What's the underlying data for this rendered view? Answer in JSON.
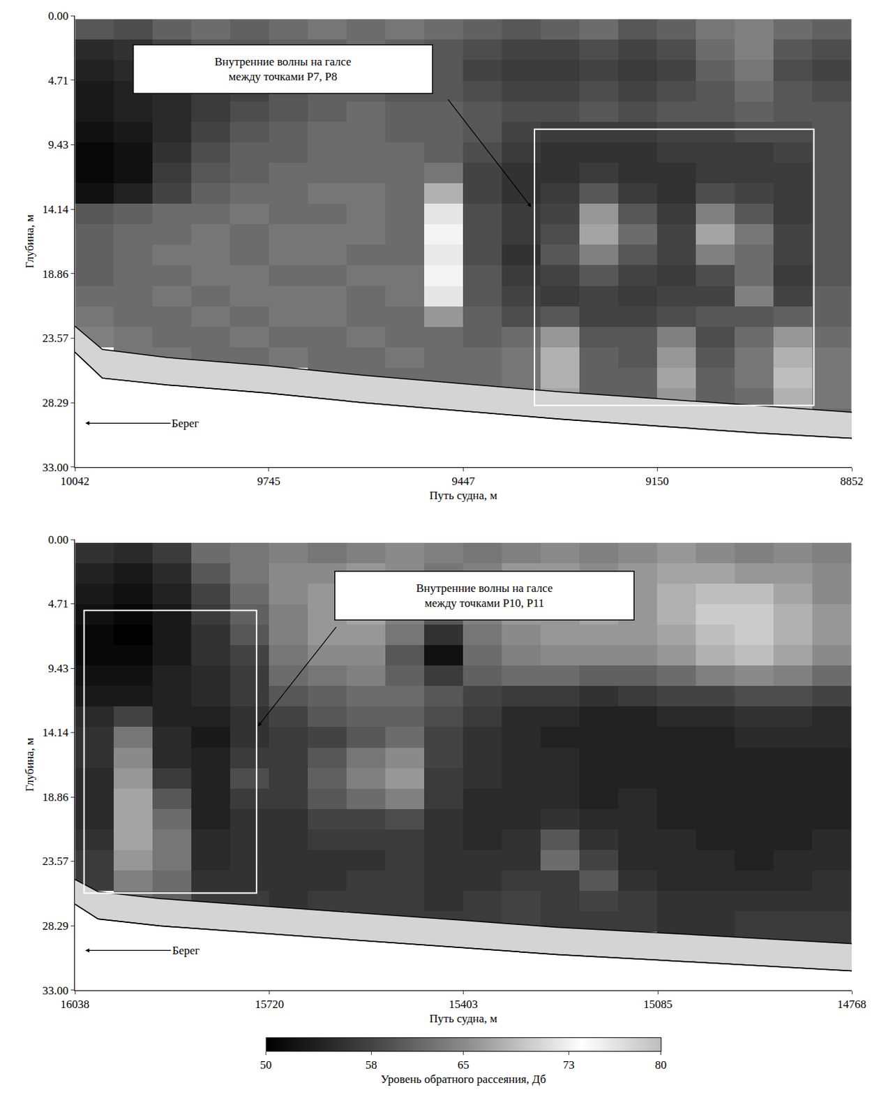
{
  "chart_data": {
    "type": "heatmap",
    "colorbar": {
      "title": "Уровень обратного рассеяния, Дб",
      "range": [
        50,
        80
      ],
      "ticks": [
        50,
        58,
        65,
        73,
        80
      ]
    },
    "panels": [
      {
        "x_label": "Путь судна, м",
        "y_label": "Глубина, м",
        "xlim": [
          10042,
          8852
        ],
        "xticks": [
          10042,
          9745,
          9447,
          9150,
          8852
        ],
        "ylim": [
          33,
          0
        ],
        "yticks": [
          {
            "value": 0,
            "label": "0.00"
          },
          4.71,
          9.43,
          14.14,
          18.86,
          23.57,
          28.29,
          {
            "value": 33,
            "label": "33.00"
          }
        ],
        "x": [
          10012,
          9953,
          9893,
          9834,
          9774,
          9715,
          9655,
          9596,
          9536,
          9477,
          9417,
          9358,
          9298,
          9239,
          9179,
          9120,
          9060,
          9001,
          8941,
          8882
        ],
        "depth": [
          1,
          2.5,
          4,
          5.5,
          7,
          8.5,
          10,
          11.5,
          13,
          14.5,
          16,
          17.5,
          19,
          20.5,
          22,
          23.5,
          25,
          26.5,
          28,
          29.5
        ],
        "z": [
          [
            60,
            59,
            61,
            62,
            61,
            62,
            63,
            62,
            63,
            62,
            61,
            60,
            61,
            62,
            60,
            61,
            63,
            64,
            62,
            61
          ],
          [
            55,
            56,
            58,
            60,
            60,
            61,
            61,
            62,
            61,
            60,
            59,
            58,
            58,
            59,
            58,
            59,
            62,
            64,
            60,
            59
          ],
          [
            54,
            55,
            56,
            58,
            59,
            60,
            61,
            61,
            60,
            60,
            58,
            57,
            57,
            58,
            57,
            58,
            61,
            63,
            59,
            58
          ],
          [
            53,
            54,
            55,
            57,
            58,
            60,
            61,
            61,
            60,
            60,
            59,
            58,
            58,
            59,
            58,
            59,
            60,
            62,
            60,
            59
          ],
          [
            53,
            54,
            55,
            57,
            59,
            60,
            61,
            62,
            61,
            61,
            60,
            59,
            59,
            60,
            59,
            60,
            60,
            61,
            60,
            60
          ],
          [
            52,
            53,
            55,
            58,
            60,
            61,
            62,
            62,
            61,
            61,
            60,
            58,
            57,
            57,
            57,
            58,
            58,
            59,
            59,
            60
          ],
          [
            51,
            52,
            56,
            59,
            61,
            61,
            62,
            62,
            62,
            61,
            59,
            57,
            56,
            56,
            56,
            57,
            57,
            57,
            58,
            60
          ],
          [
            51,
            52,
            57,
            60,
            61,
            62,
            62,
            62,
            62,
            63,
            58,
            56,
            56,
            57,
            56,
            56,
            57,
            57,
            57,
            60
          ],
          [
            52,
            54,
            58,
            61,
            62,
            62,
            63,
            63,
            62,
            68,
            58,
            56,
            57,
            60,
            57,
            56,
            59,
            58,
            57,
            60
          ],
          [
            60,
            61,
            62,
            62,
            63,
            62,
            62,
            63,
            62,
            72,
            59,
            57,
            58,
            66,
            60,
            57,
            64,
            60,
            57,
            60
          ],
          [
            61,
            62,
            62,
            63,
            62,
            63,
            63,
            63,
            62,
            75,
            59,
            57,
            59,
            67,
            62,
            58,
            67,
            63,
            58,
            60
          ],
          [
            61,
            62,
            63,
            63,
            62,
            63,
            63,
            62,
            62,
            76,
            59,
            56,
            60,
            64,
            60,
            58,
            64,
            62,
            58,
            60
          ],
          [
            61,
            62,
            62,
            63,
            63,
            62,
            62,
            63,
            63,
            75,
            60,
            57,
            58,
            60,
            58,
            57,
            59,
            62,
            57,
            60
          ],
          [
            62,
            62,
            63,
            62,
            63,
            63,
            63,
            62,
            63,
            72,
            60,
            58,
            57,
            58,
            57,
            58,
            58,
            64,
            58,
            61
          ],
          [
            63,
            62,
            62,
            63,
            62,
            63,
            63,
            62,
            62,
            66,
            61,
            59,
            60,
            58,
            58,
            59,
            60,
            60,
            61,
            61
          ],
          [
            64,
            63,
            62,
            62,
            63,
            62,
            62,
            63,
            62,
            62,
            61,
            62,
            66,
            60,
            60,
            64,
            59,
            62,
            66,
            62
          ],
          [
            null,
            63,
            63,
            62,
            62,
            63,
            62,
            62,
            63,
            62,
            62,
            63,
            68,
            61,
            60,
            66,
            60,
            63,
            68,
            63
          ],
          [
            null,
            null,
            null,
            null,
            null,
            null,
            62,
            62,
            62,
            62,
            62,
            63,
            68,
            61,
            61,
            67,
            61,
            63,
            69,
            63
          ],
          [
            null,
            null,
            null,
            null,
            null,
            null,
            null,
            null,
            null,
            null,
            null,
            63,
            67,
            61,
            61,
            66,
            61,
            62,
            68,
            63
          ],
          [
            null,
            null,
            null,
            null,
            null,
            null,
            null,
            null,
            null,
            null,
            null,
            null,
            null,
            null,
            null,
            null,
            null,
            null,
            null,
            62
          ]
        ],
        "seabed": {
          "x": [
            10042,
            10000,
            9900,
            9745,
            9600,
            9447,
            9300,
            9150,
            9000,
            8852
          ],
          "top": [
            22.7,
            24.4,
            25.0,
            25.6,
            26.3,
            26.9,
            27.5,
            28.0,
            28.5,
            29.0
          ],
          "bottom": [
            24.6,
            26.5,
            27.0,
            27.6,
            28.3,
            28.9,
            29.5,
            30.0,
            30.5,
            30.9
          ]
        },
        "regions": [
          {
            "x0": 9338,
            "x1": 8910,
            "y0": 8.3,
            "y1": 28.5
          }
        ],
        "annotations": [
          {
            "text": [
              "Внутренние волны на галсе",
              "между точками Р7, Р8"
            ],
            "x": 9723,
            "y": 3.9,
            "arrow_from": [
              9474,
              5.9
            ],
            "arrow_to": [
              9343,
              14.0
            ]
          },
          {
            "text": [
              "Берег"
            ],
            "x": 9873,
            "y": 29.8,
            "arrow_to": [
              10026,
              29.8
            ]
          }
        ]
      },
      {
        "x_label": "Путь судна, м",
        "y_label": "Глубина, м",
        "xlim": [
          16038,
          14768
        ],
        "xticks": [
          16038,
          15720,
          15403,
          15085,
          14768
        ],
        "ylim": [
          33,
          0
        ],
        "yticks": [
          {
            "value": 0,
            "label": "0.00"
          },
          4.71,
          9.43,
          14.14,
          18.86,
          23.57,
          28.29,
          {
            "value": 33,
            "label": "33.00"
          }
        ],
        "x": [
          16006,
          15943,
          15879,
          15816,
          15752,
          15689,
          15625,
          15562,
          15498,
          15435,
          15371,
          15308,
          15244,
          15181,
          15117,
          15054,
          14990,
          14927,
          14863,
          14800
        ],
        "depth": [
          1,
          2.5,
          4,
          5.5,
          7,
          8.5,
          10,
          11.5,
          13,
          14.5,
          16,
          17.5,
          19,
          20.5,
          22,
          23.5,
          25,
          26.5,
          28,
          29.5
        ],
        "z": [
          [
            56,
            55,
            57,
            62,
            63,
            64,
            63,
            64,
            65,
            64,
            63,
            64,
            65,
            64,
            65,
            66,
            65,
            64,
            65,
            64
          ],
          [
            54,
            53,
            55,
            60,
            63,
            65,
            65,
            66,
            65,
            63,
            64,
            66,
            66,
            65,
            66,
            67,
            67,
            66,
            66,
            65
          ],
          [
            53,
            52,
            54,
            58,
            62,
            65,
            66,
            66,
            64,
            62,
            65,
            66,
            67,
            66,
            66,
            68,
            69,
            69,
            67,
            65
          ],
          [
            52,
            51,
            53,
            57,
            61,
            64,
            66,
            67,
            64,
            60,
            64,
            66,
            66,
            67,
            66,
            68,
            70,
            70,
            68,
            66
          ],
          [
            51,
            50,
            53,
            56,
            60,
            64,
            66,
            66,
            63,
            56,
            63,
            65,
            66,
            66,
            66,
            67,
            69,
            70,
            68,
            66
          ],
          [
            51,
            51,
            53,
            56,
            58,
            63,
            65,
            65,
            60,
            52,
            62,
            64,
            65,
            65,
            65,
            66,
            68,
            69,
            67,
            65
          ],
          [
            52,
            52,
            54,
            55,
            57,
            62,
            63,
            64,
            61,
            57,
            61,
            62,
            62,
            61,
            61,
            62,
            64,
            65,
            64,
            62
          ],
          [
            53,
            53,
            54,
            55,
            57,
            60,
            61,
            62,
            62,
            60,
            58,
            57,
            57,
            56,
            57,
            58,
            58,
            59,
            59,
            58
          ],
          [
            55,
            58,
            54,
            54,
            56,
            58,
            60,
            61,
            61,
            59,
            57,
            55,
            55,
            54,
            54,
            55,
            55,
            56,
            56,
            55
          ],
          [
            56,
            63,
            55,
            53,
            56,
            57,
            58,
            60,
            62,
            58,
            56,
            55,
            54,
            54,
            54,
            54,
            54,
            55,
            55,
            55
          ],
          [
            56,
            65,
            55,
            54,
            57,
            57,
            60,
            63,
            65,
            58,
            56,
            55,
            55,
            54,
            54,
            54,
            54,
            54,
            54,
            54
          ],
          [
            55,
            66,
            57,
            54,
            59,
            57,
            61,
            64,
            66,
            57,
            56,
            55,
            55,
            54,
            54,
            54,
            54,
            54,
            54,
            54
          ],
          [
            55,
            67,
            60,
            54,
            57,
            57,
            60,
            62,
            64,
            57,
            55,
            55,
            55,
            54,
            55,
            54,
            54,
            54,
            54,
            54
          ],
          [
            55,
            67,
            62,
            54,
            56,
            56,
            58,
            58,
            59,
            56,
            55,
            55,
            56,
            55,
            55,
            54,
            54,
            54,
            54,
            54
          ],
          [
            56,
            67,
            63,
            55,
            56,
            56,
            57,
            57,
            57,
            56,
            55,
            56,
            60,
            56,
            55,
            55,
            54,
            54,
            54,
            55
          ],
          [
            57,
            66,
            63,
            55,
            56,
            56,
            56,
            56,
            57,
            56,
            56,
            56,
            62,
            58,
            55,
            55,
            55,
            54,
            55,
            55
          ],
          [
            57,
            64,
            62,
            56,
            56,
            56,
            56,
            57,
            57,
            56,
            56,
            57,
            57,
            60,
            56,
            55,
            55,
            55,
            55,
            56
          ],
          [
            null,
            62,
            61,
            57,
            57,
            56,
            57,
            57,
            57,
            56,
            57,
            58,
            57,
            58,
            57,
            56,
            56,
            56,
            56,
            56
          ],
          [
            null,
            null,
            null,
            null,
            null,
            null,
            null,
            57,
            57,
            57,
            57,
            58,
            57,
            57,
            57,
            56,
            56,
            57,
            57,
            57
          ],
          [
            null,
            null,
            null,
            null,
            null,
            null,
            null,
            null,
            null,
            null,
            null,
            null,
            null,
            null,
            null,
            56,
            56,
            57,
            57,
            57
          ]
        ],
        "seabed": {
          "x": [
            16038,
            16000,
            15900,
            15720,
            15560,
            15403,
            15250,
            15085,
            14920,
            14768
          ],
          "top": [
            24.9,
            25.8,
            26.3,
            26.9,
            27.4,
            27.9,
            28.4,
            28.8,
            29.2,
            29.6
          ],
          "bottom": [
            26.7,
            27.8,
            28.3,
            28.9,
            29.4,
            29.9,
            30.4,
            30.8,
            31.2,
            31.6
          ]
        },
        "regions": [
          {
            "x0": 16023,
            "x1": 15741,
            "y0": 5.2,
            "y1": 25.9
          }
        ],
        "annotations": [
          {
            "text": [
              "Внутренние волны на галсе",
              "между точками Р10, Р11"
            ],
            "x": 15368,
            "y": 4.1,
            "arrow_from": [
              15607,
              6.2
            ],
            "arrow_to": [
              15739,
              13.7
            ]
          },
          {
            "text": [
              "Берег"
            ],
            "x": 15857,
            "y": 30.1,
            "arrow_to": [
              16021,
              30.1
            ]
          }
        ]
      }
    ]
  }
}
